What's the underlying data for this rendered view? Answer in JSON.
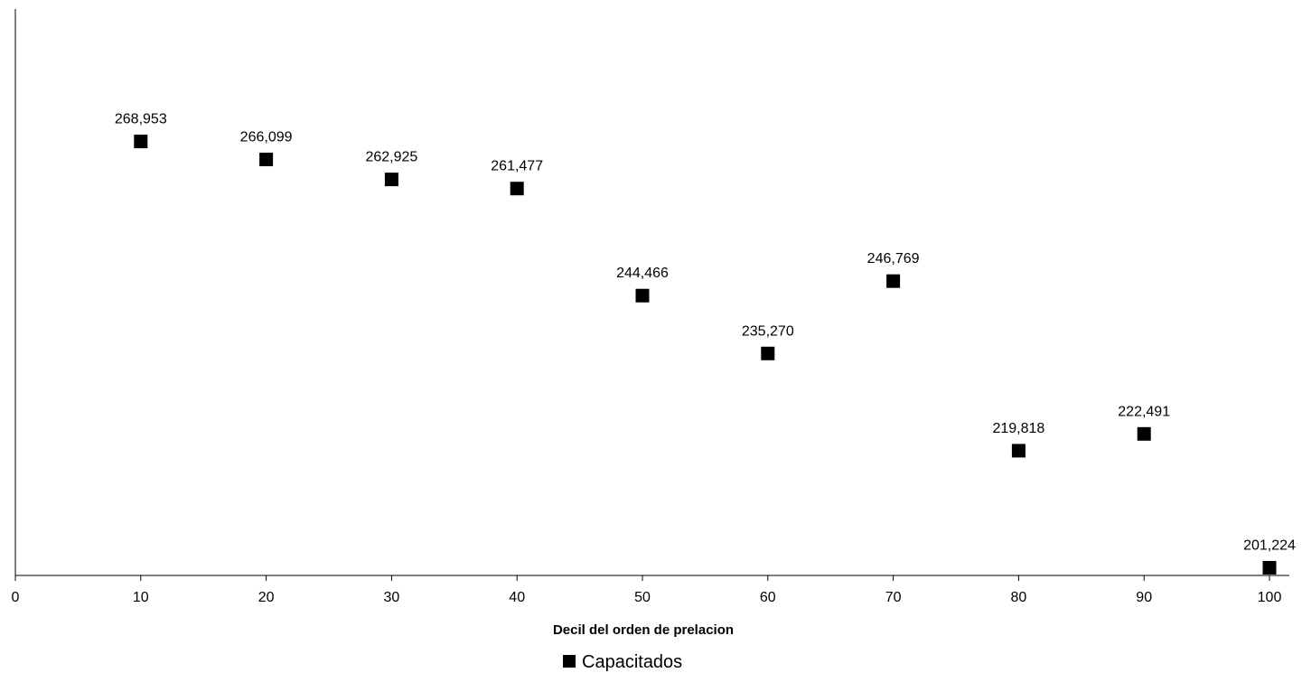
{
  "chart_data": {
    "type": "scatter",
    "xlabel": "Decil del orden de prelacion",
    "ylabel": "",
    "xlim": [
      0,
      100
    ],
    "ylim": [
      200000,
      290000
    ],
    "x_ticks": [
      "0",
      "10",
      "20",
      "30",
      "40",
      "50",
      "60",
      "70",
      "80",
      "90",
      "100"
    ],
    "y_axis_tick_labels_visible": false,
    "grid": false,
    "legend": {
      "position": "bottom-center",
      "entries": [
        "Capacitados"
      ]
    },
    "series": [
      {
        "name": "Capacitados",
        "marker": "square",
        "color": "#000000",
        "x": [
          10,
          20,
          30,
          40,
          50,
          60,
          70,
          80,
          90,
          100
        ],
        "y": [
          268953,
          266099,
          262925,
          261477,
          244466,
          235270,
          246769,
          219818,
          222491,
          201224
        ],
        "labels": [
          "268,953",
          "266,099",
          "262,925",
          "261,477",
          "244,466",
          "235,270",
          "246,769",
          "219,818",
          "222,491",
          "201,224"
        ]
      }
    ]
  }
}
